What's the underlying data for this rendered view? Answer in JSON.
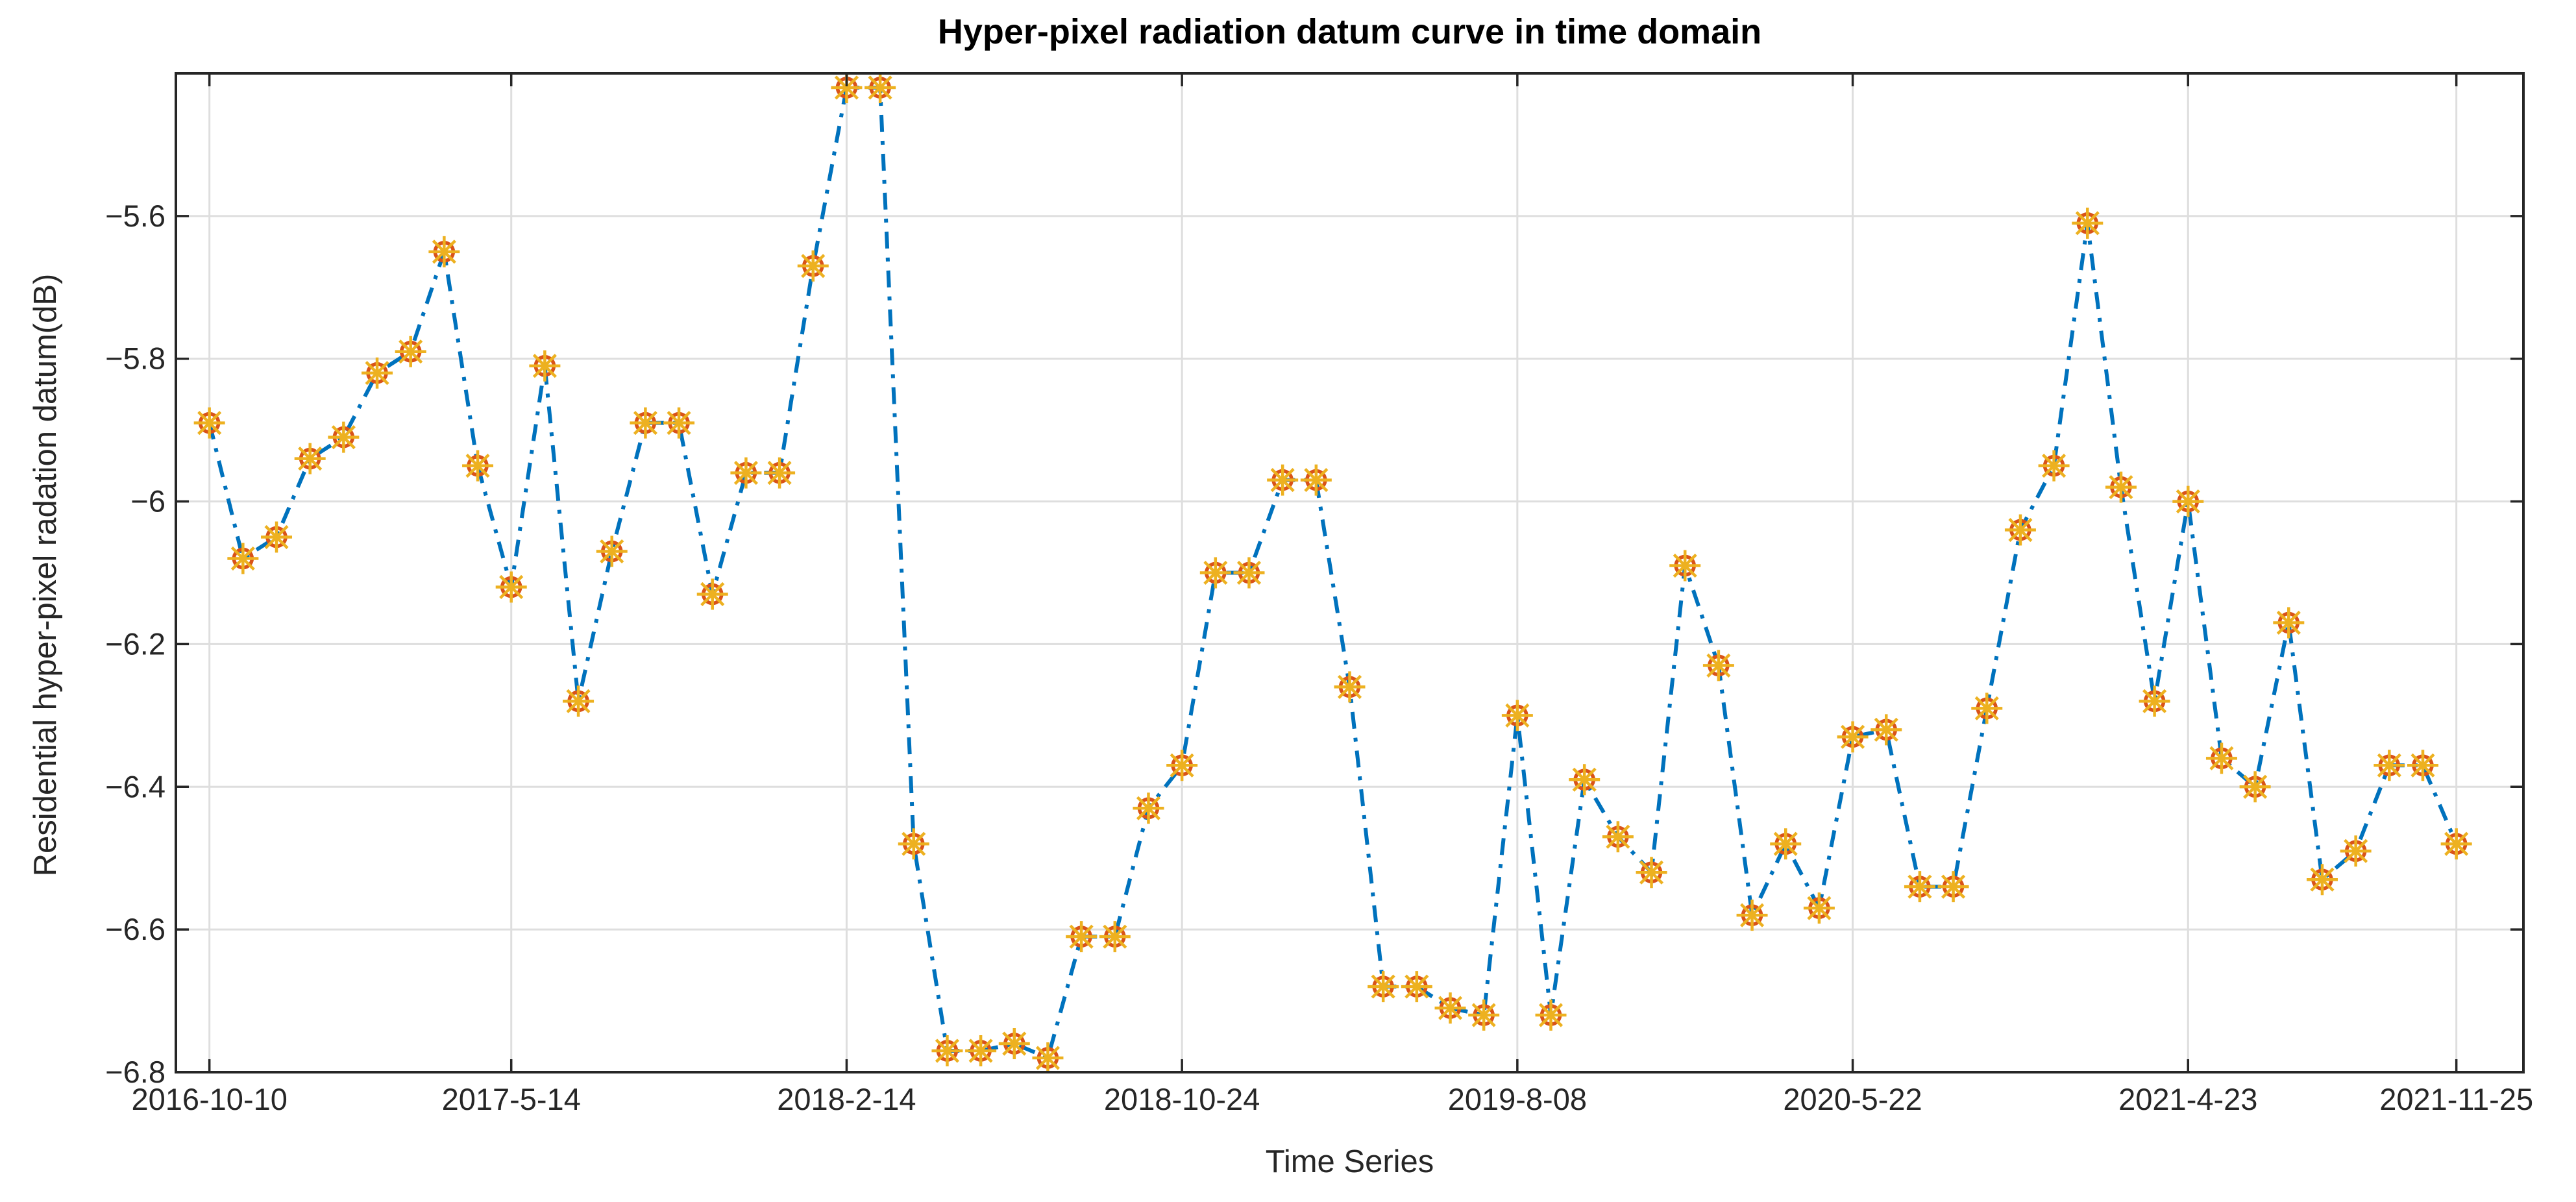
{
  "figure": {
    "title": "Hyper-pixel radiation datum curve in time domain",
    "xlabel": "Time Series",
    "ylabel": "Residential hyper-pixel radation datum(dB)"
  },
  "chart_data": {
    "type": "line",
    "title": "Hyper-pixel radiation datum curve in time domain",
    "xlabel": "Time Series",
    "ylabel": "Residential hyper-pixel radation datum(dB)",
    "line_style": "dash-dot",
    "marker": "circle-plus-asterisk",
    "grid": true,
    "legend": "none",
    "colors": {
      "line": "#0072BD",
      "marker_circle": "#D95319",
      "marker_asterisk": "#EDB120",
      "axis": "#262626",
      "grid": "#DEDEDE",
      "title_text": "#000000"
    },
    "ylim": [
      -6.8,
      -5.4
    ],
    "xlim_index": [
      -1,
      69
    ],
    "y_ticks": [
      "-5.6",
      "-5.8",
      "-6",
      "-6.2",
      "-6.4",
      "-6.6",
      "-6.8"
    ],
    "y_tick_values": [
      -5.6,
      -5.8,
      -6.0,
      -6.2,
      -6.4,
      -6.6,
      -6.8
    ],
    "x_tick_labels": [
      "2016-10-10",
      "2017-5-14",
      "2018-2-14",
      "2018-10-24",
      "2019-8-08",
      "2020-5-22",
      "2021-4-23",
      "2021-11-25"
    ],
    "x_tick_indices": [
      0,
      9,
      19,
      29,
      39,
      49,
      59,
      67
    ],
    "values": [
      -5.89,
      -6.08,
      -6.05,
      -5.94,
      -5.91,
      -5.82,
      -5.79,
      -5.65,
      -5.95,
      -6.12,
      -5.81,
      -6.28,
      -6.07,
      -5.89,
      -5.89,
      -6.13,
      -5.96,
      -5.96,
      -5.67,
      -5.42,
      -5.42,
      -6.48,
      -6.77,
      -6.77,
      -6.76,
      -6.78,
      -6.61,
      -6.61,
      -6.43,
      -6.37,
      -6.1,
      -6.1,
      -5.97,
      -5.97,
      -6.26,
      -6.68,
      -6.68,
      -6.71,
      -6.72,
      -6.3,
      -6.72,
      -6.39,
      -6.47,
      -6.52,
      -6.09,
      -6.23,
      -6.58,
      -6.48,
      -6.57,
      -6.33,
      -6.32,
      -6.54,
      -6.54,
      -6.29,
      -6.04,
      -5.95,
      -5.61,
      -5.98,
      -6.28,
      -6.0,
      -6.36,
      -6.4,
      -6.17,
      -6.53,
      -6.49,
      -6.37,
      -6.37,
      -6.48
    ]
  }
}
